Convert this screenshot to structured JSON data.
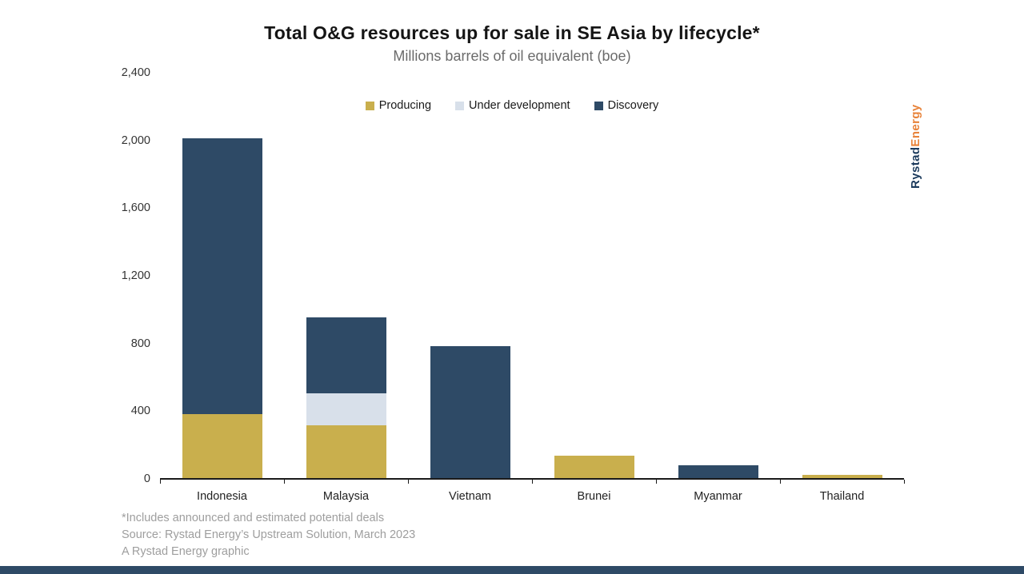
{
  "title": "Total O&G resources up for sale in SE Asia by lifecycle*",
  "subtitle": "Millions barrels of oil equivalent (boe)",
  "legend": [
    {
      "label": "Producing",
      "color": "#C9AF4D"
    },
    {
      "label": "Under development",
      "color": "#D8E0EA"
    },
    {
      "label": "Discovery",
      "color": "#2E4A66"
    }
  ],
  "chart_data": {
    "type": "bar",
    "stacked": true,
    "title": "Total O&G resources up for sale in SE Asia by lifecycle*",
    "subtitle": "Millions barrels of oil equivalent (boe)",
    "categories": [
      "Indonesia",
      "Malaysia",
      "Vietnam",
      "Brunei",
      "Myanmar",
      "Thailand"
    ],
    "series": [
      {
        "name": "Producing",
        "color": "#C9AF4D",
        "values": [
          380,
          310,
          0,
          130,
          0,
          20
        ]
      },
      {
        "name": "Under development",
        "color": "#D8E0EA",
        "values": [
          0,
          190,
          0,
          0,
          0,
          0
        ]
      },
      {
        "name": "Discovery",
        "color": "#2E4A66",
        "values": [
          1630,
          450,
          780,
          0,
          75,
          0
        ]
      }
    ],
    "ylim": [
      0,
      2400
    ],
    "ytick_values": [
      0,
      400,
      800,
      1200,
      1600,
      2000,
      2400
    ],
    "ytick_labels": [
      "0",
      "400",
      "800",
      "1,200",
      "1,600",
      "2,000",
      "2,400"
    ],
    "grid": false,
    "legend_position": "top-center"
  },
  "footnotes": [
    "*Includes announced and estimated potential deals",
    "Source: Rystad Energy’s Upstream Solution, March 2023",
    "A Rystad Energy graphic"
  ],
  "logo": {
    "part1": "Rystad",
    "part2": "Energy",
    "color1": "#1B3A5C",
    "color2": "#E8833A"
  },
  "accent_bar_color": "#2E4A66"
}
